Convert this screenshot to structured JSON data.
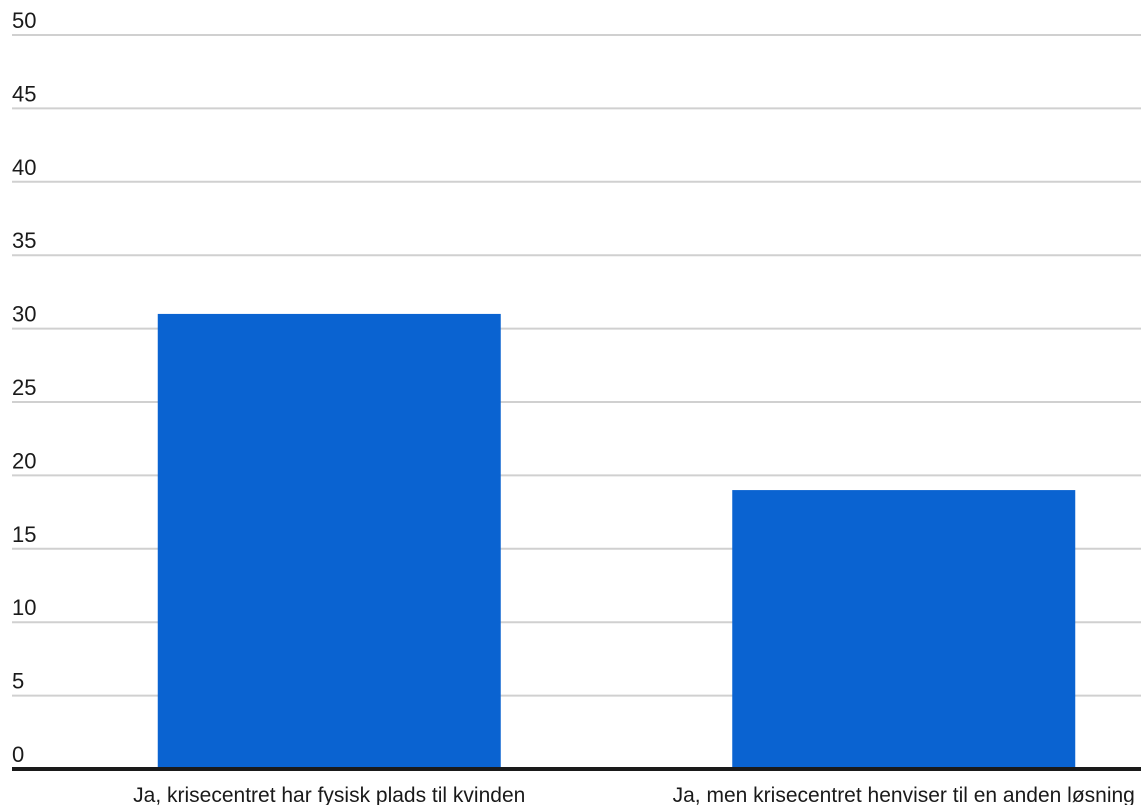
{
  "chart_data": {
    "type": "bar",
    "categories": [
      "Ja, krisecentret har fysisk plads til kvinden",
      "Ja, men krisecentret henviser til en anden løsning"
    ],
    "values": [
      31,
      19
    ],
    "title": "",
    "xlabel": "",
    "ylabel": "",
    "ylim": [
      0,
      50
    ],
    "yticks": [
      0,
      5,
      10,
      15,
      20,
      25,
      30,
      35,
      40,
      45,
      50
    ],
    "grid": true,
    "bar_color": "#0a63d1"
  }
}
